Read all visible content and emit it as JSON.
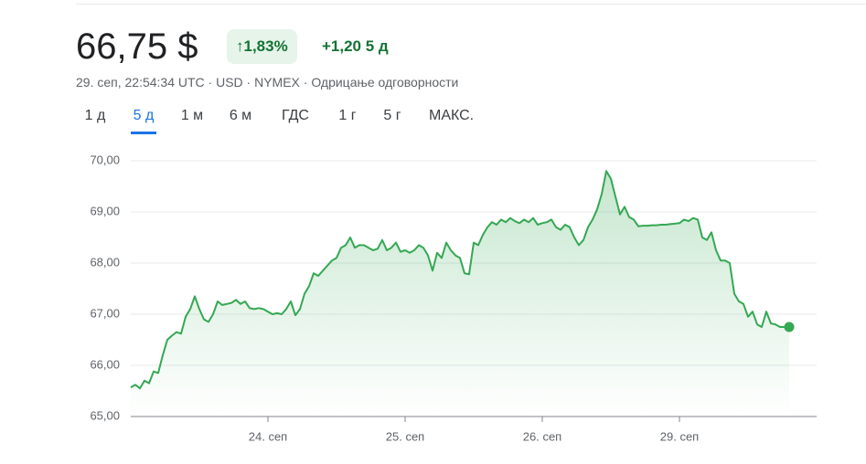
{
  "header": {
    "price": "66,75 $",
    "change_pct": "1,83%",
    "change": "+1,20",
    "period": "5 д",
    "subtitle": "29. сеп, 22:54:34 UTC · USD · NYMEX · Одрицање одговорности"
  },
  "tabs": {
    "items": [
      "1 д",
      "5 д",
      "1 м",
      "6 м",
      "ГДС",
      "1 г",
      "5 г",
      "МАКС."
    ],
    "active": 1
  },
  "chart_data": {
    "type": "line",
    "color": "#34a853",
    "grid": true,
    "xlim": [
      0,
      150
    ],
    "xticks": [
      {
        "value": 30,
        "label": "24. сеп"
      },
      {
        "value": 60,
        "label": "25. сеп"
      },
      {
        "value": 90,
        "label": "26. сеп"
      },
      {
        "value": 120,
        "label": "29. сеп"
      }
    ],
    "ylim": [
      65,
      70
    ],
    "yticks": [
      {
        "value": 65,
        "label": "65,00"
      },
      {
        "value": 66,
        "label": "66,00"
      },
      {
        "value": 67,
        "label": "67,00"
      },
      {
        "value": 68,
        "label": "68,00"
      },
      {
        "value": 69,
        "label": "69,00"
      },
      {
        "value": 70,
        "label": "70,00"
      }
    ],
    "values": [
      65.57,
      65.62,
      65.55,
      65.7,
      65.65,
      65.88,
      65.85,
      66.2,
      66.5,
      66.58,
      66.65,
      66.62,
      66.95,
      67.1,
      67.35,
      67.1,
      66.9,
      66.85,
      67.0,
      67.25,
      67.18,
      67.2,
      67.22,
      67.28,
      67.2,
      67.25,
      67.12,
      67.1,
      67.12,
      67.1,
      67.05,
      67.0,
      67.02,
      67.0,
      67.1,
      67.25,
      66.98,
      67.1,
      67.4,
      67.55,
      67.8,
      67.75,
      67.85,
      67.95,
      68.05,
      68.1,
      68.3,
      68.35,
      68.5,
      68.3,
      68.35,
      68.35,
      68.3,
      68.25,
      68.28,
      68.45,
      68.25,
      68.3,
      68.4,
      68.22,
      68.25,
      68.2,
      68.25,
      68.35,
      68.3,
      68.15,
      67.85,
      68.2,
      68.1,
      68.4,
      68.25,
      68.15,
      68.1,
      67.8,
      67.78,
      68.4,
      68.35,
      68.55,
      68.7,
      68.8,
      68.75,
      68.85,
      68.8,
      68.88,
      68.82,
      68.78,
      68.85,
      68.8,
      68.88,
      68.75,
      68.78,
      68.8,
      68.85,
      68.7,
      68.65,
      68.75,
      68.7,
      68.5,
      68.35,
      68.45,
      68.7,
      68.85,
      69.05,
      69.35,
      69.8,
      69.65,
      69.3,
      68.95,
      69.1,
      68.9,
      68.85,
      68.72,
      68.73,
      68.73,
      68.74,
      68.74,
      68.75,
      68.75,
      68.76,
      68.77,
      68.78,
      68.85,
      68.82,
      68.88,
      68.85,
      68.5,
      68.45,
      68.6,
      68.25,
      68.05,
      68.05,
      68.0,
      67.4,
      67.25,
      67.2,
      66.95,
      67.05,
      66.8,
      66.75,
      67.05,
      66.82,
      66.8,
      66.75,
      66.75,
      66.75
    ]
  }
}
